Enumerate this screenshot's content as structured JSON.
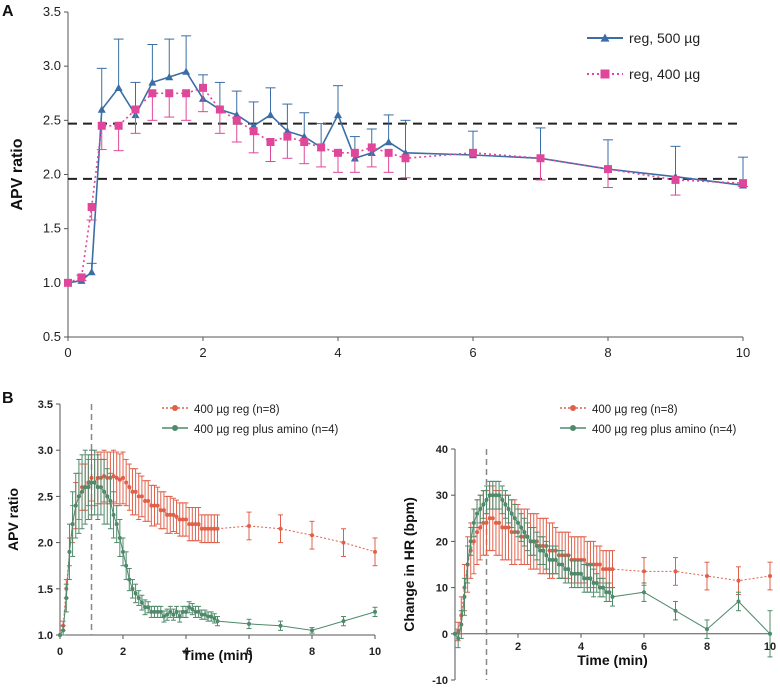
{
  "figure": {
    "panel_a_label": "A",
    "panel_b_label": "B"
  },
  "colors": {
    "blue": "#3a6ea5",
    "pink": "#e0479a",
    "red": "#e0604a",
    "green": "#4f8a6b",
    "dash_black": "#222222",
    "dash_gray": "#888888"
  },
  "chart_data": [
    {
      "id": "A",
      "type": "line",
      "xlabel": "",
      "ylabel": "APV ratio",
      "xlim": [
        0,
        10
      ],
      "ylim": [
        0.5,
        3.5
      ],
      "xticks": [
        "0",
        "2",
        "4",
        "6",
        "8",
        "10"
      ],
      "yticks": [
        "0.5",
        "1.0",
        "1.5",
        "2.0",
        "2.5",
        "3.0",
        "3.5"
      ],
      "reference_lines": [
        2.47,
        1.96
      ],
      "legend_position": "top-right",
      "series": [
        {
          "name": "reg, 500 µg",
          "x": [
            0,
            0.2,
            0.35,
            0.5,
            0.75,
            1.0,
            1.25,
            1.5,
            1.75,
            2.0,
            2.25,
            2.5,
            2.75,
            3.0,
            3.25,
            3.5,
            3.75,
            4.0,
            4.25,
            4.5,
            4.75,
            5.0,
            6.0,
            7.0,
            8.0,
            9.0,
            10.0
          ],
          "y": [
            1.0,
            1.02,
            1.1,
            2.6,
            2.8,
            2.55,
            2.85,
            2.9,
            2.95,
            2.7,
            2.6,
            2.55,
            2.45,
            2.55,
            2.4,
            2.35,
            2.25,
            2.55,
            2.15,
            2.2,
            2.3,
            2.2,
            2.18,
            2.15,
            2.05,
            1.98,
            1.9
          ],
          "err": [
            0,
            0.05,
            0.08,
            0.38,
            0.45,
            0.3,
            0.35,
            0.35,
            0.33,
            0.22,
            0.25,
            0.22,
            0.22,
            0.25,
            0.25,
            0.22,
            0.22,
            0.27,
            0.2,
            0.22,
            0.25,
            0.3,
            0.22,
            0.28,
            0.27,
            0.28,
            0.26
          ]
        },
        {
          "name": "reg, 400 µg",
          "x": [
            0,
            0.2,
            0.35,
            0.5,
            0.75,
            1.0,
            1.25,
            1.5,
            1.75,
            2.0,
            2.25,
            2.5,
            2.75,
            3.0,
            3.25,
            3.5,
            3.75,
            4.0,
            4.25,
            4.5,
            4.75,
            5.0,
            6.0,
            7.0,
            8.0,
            9.0,
            10.0
          ],
          "y": [
            1.0,
            1.05,
            1.7,
            2.45,
            2.45,
            2.6,
            2.75,
            2.75,
            2.75,
            2.8,
            2.6,
            2.5,
            2.4,
            2.3,
            2.35,
            2.3,
            2.25,
            2.2,
            2.2,
            2.25,
            2.2,
            2.15,
            2.2,
            2.15,
            2.05,
            1.95,
            1.92
          ],
          "err": [
            0,
            0.03,
            0.12,
            0.22,
            0.23,
            0.22,
            0.25,
            0.22,
            0.25,
            0.22,
            0.22,
            0.2,
            0.2,
            0.18,
            0.2,
            0.2,
            0.18,
            0.18,
            0.18,
            0.18,
            0.18,
            0.18,
            0.0,
            0.2,
            0.17,
            0.14,
            0.03
          ]
        }
      ]
    },
    {
      "id": "B-left",
      "type": "line",
      "xlabel": "Time (min)",
      "ylabel": "APV ratio",
      "xlim": [
        0,
        10
      ],
      "ylim": [
        1.0,
        3.5
      ],
      "xticks": [
        "0",
        "2",
        "4",
        "6",
        "8",
        "10"
      ],
      "yticks": [
        "1.0",
        "1.5",
        "2.0",
        "2.5",
        "3.0",
        "3.5"
      ],
      "reference_x": 1.0,
      "legend_position": "top-right",
      "series": [
        {
          "name": "400 µg reg (n=8)",
          "x": [
            0,
            0.1,
            0.2,
            0.3,
            0.4,
            0.5,
            0.6,
            0.7,
            0.8,
            0.9,
            1.0,
            1.1,
            1.2,
            1.3,
            1.4,
            1.5,
            1.6,
            1.7,
            1.8,
            1.9,
            2.0,
            2.1,
            2.2,
            2.3,
            2.4,
            2.5,
            2.6,
            2.7,
            2.8,
            2.9,
            3.0,
            3.1,
            3.2,
            3.3,
            3.4,
            3.5,
            3.6,
            3.7,
            3.8,
            3.9,
            4.0,
            4.1,
            4.2,
            4.3,
            4.4,
            4.5,
            4.6,
            4.7,
            4.8,
            4.9,
            5.0,
            6.0,
            7.0,
            8.0,
            9.0,
            10.0
          ],
          "y": [
            1.0,
            1.1,
            1.5,
            1.9,
            2.2,
            2.4,
            2.5,
            2.6,
            2.6,
            2.65,
            2.7,
            2.65,
            2.7,
            2.7,
            2.72,
            2.7,
            2.7,
            2.72,
            2.7,
            2.68,
            2.7,
            2.65,
            2.6,
            2.55,
            2.55,
            2.5,
            2.5,
            2.45,
            2.45,
            2.4,
            2.4,
            2.4,
            2.35,
            2.35,
            2.3,
            2.3,
            2.3,
            2.28,
            2.25,
            2.25,
            2.25,
            2.2,
            2.2,
            2.2,
            2.2,
            2.15,
            2.15,
            2.15,
            2.15,
            2.15,
            2.15,
            2.18,
            2.15,
            2.08,
            2.0,
            1.9
          ],
          "err": [
            0,
            0.05,
            0.1,
            0.15,
            0.2,
            0.25,
            0.25,
            0.25,
            0.25,
            0.25,
            0.25,
            0.25,
            0.28,
            0.28,
            0.28,
            0.28,
            0.28,
            0.28,
            0.28,
            0.28,
            0.28,
            0.25,
            0.25,
            0.25,
            0.25,
            0.25,
            0.22,
            0.22,
            0.22,
            0.22,
            0.22,
            0.2,
            0.2,
            0.2,
            0.2,
            0.2,
            0.18,
            0.18,
            0.18,
            0.18,
            0.18,
            0.18,
            0.18,
            0.18,
            0.18,
            0.15,
            0.15,
            0.15,
            0.15,
            0.15,
            0.15,
            0.15,
            0.15,
            0.15,
            0.15,
            0.15
          ]
        },
        {
          "name": "400 µg reg plus amino (n=4)",
          "x": [
            0,
            0.1,
            0.2,
            0.3,
            0.4,
            0.5,
            0.6,
            0.7,
            0.8,
            0.9,
            1.0,
            1.1,
            1.2,
            1.3,
            1.4,
            1.5,
            1.6,
            1.7,
            1.8,
            1.9,
            2.0,
            2.1,
            2.2,
            2.3,
            2.4,
            2.5,
            2.6,
            2.7,
            2.8,
            2.9,
            3.0,
            3.1,
            3.2,
            3.3,
            3.4,
            3.5,
            3.6,
            3.7,
            3.8,
            3.9,
            4.0,
            4.1,
            4.2,
            4.3,
            4.4,
            4.5,
            4.6,
            4.7,
            4.8,
            4.9,
            5.0,
            6.0,
            7.0,
            8.0,
            9.0,
            10.0
          ],
          "y": [
            1.0,
            1.05,
            1.4,
            1.9,
            2.2,
            2.4,
            2.5,
            2.55,
            2.6,
            2.6,
            2.65,
            2.65,
            2.6,
            2.6,
            2.55,
            2.5,
            2.45,
            2.3,
            2.2,
            2.05,
            1.9,
            1.75,
            1.6,
            1.5,
            1.45,
            1.4,
            1.35,
            1.3,
            1.3,
            1.25,
            1.25,
            1.25,
            1.25,
            1.2,
            1.22,
            1.25,
            1.22,
            1.25,
            1.2,
            1.25,
            1.25,
            1.3,
            1.28,
            1.25,
            1.25,
            1.22,
            1.22,
            1.2,
            1.2,
            1.18,
            1.15,
            1.12,
            1.1,
            1.05,
            1.15,
            1.25
          ],
          "err": [
            0,
            0.05,
            0.15,
            0.3,
            0.35,
            0.35,
            0.4,
            0.4,
            0.4,
            0.35,
            0.35,
            0.35,
            0.35,
            0.3,
            0.35,
            0.3,
            0.3,
            0.25,
            0.2,
            0.2,
            0.15,
            0.15,
            0.12,
            0.1,
            0.1,
            0.08,
            0.08,
            0.08,
            0.06,
            0.06,
            0.06,
            0.06,
            0.06,
            0.06,
            0.06,
            0.06,
            0.06,
            0.06,
            0.06,
            0.06,
            0.06,
            0.06,
            0.06,
            0.06,
            0.06,
            0.05,
            0.05,
            0.05,
            0.05,
            0.05,
            0.05,
            0.05,
            0.05,
            0.03,
            0.05,
            0.05
          ]
        }
      ]
    },
    {
      "id": "B-right",
      "type": "line",
      "xlabel": "Time (min)",
      "ylabel": "Change in HR (bpm)",
      "xlim": [
        0,
        10
      ],
      "ylim": [
        -10,
        40
      ],
      "xticks": [
        "2",
        "4",
        "6",
        "8",
        "10"
      ],
      "yticks": [
        "-10",
        "0",
        "10",
        "20",
        "30",
        "40"
      ],
      "reference_x": 1.0,
      "legend_position": "top-right",
      "series": [
        {
          "name": "400 µg reg (n=8)",
          "x": [
            0,
            0.1,
            0.2,
            0.3,
            0.4,
            0.5,
            0.6,
            0.7,
            0.8,
            0.9,
            1.0,
            1.1,
            1.2,
            1.3,
            1.4,
            1.5,
            1.6,
            1.7,
            1.8,
            1.9,
            2.0,
            2.1,
            2.2,
            2.3,
            2.4,
            2.5,
            2.6,
            2.7,
            2.8,
            2.9,
            3.0,
            3.1,
            3.2,
            3.3,
            3.4,
            3.5,
            3.6,
            3.7,
            3.8,
            3.9,
            4.0,
            4.1,
            4.2,
            4.3,
            4.4,
            4.5,
            4.6,
            4.7,
            4.8,
            4.9,
            5.0,
            6.0,
            7.0,
            8.0,
            9.0,
            10.0
          ],
          "y": [
            0,
            0.5,
            4,
            10,
            15,
            18,
            20,
            22,
            23,
            24,
            24,
            25,
            25,
            24,
            24,
            23,
            23,
            23,
            22,
            22,
            22,
            21,
            21,
            21,
            20,
            20,
            20,
            19,
            19,
            19,
            18,
            18,
            18,
            17,
            17,
            17,
            17,
            16,
            16,
            16,
            16,
            16,
            15,
            15,
            15,
            15,
            15,
            14,
            14,
            14,
            14,
            13.5,
            13.5,
            12.5,
            11.5,
            12.5
          ],
          "err": [
            0,
            2,
            4,
            5,
            6,
            6,
            7,
            7,
            7,
            7,
            7,
            7,
            7,
            7,
            7,
            7,
            7,
            7,
            7,
            7,
            6,
            6,
            6,
            6,
            6,
            6,
            6,
            6,
            6,
            6,
            6,
            6,
            5,
            5,
            5,
            5,
            5,
            5,
            5,
            5,
            5,
            5,
            5,
            5,
            5,
            4,
            4,
            4,
            4,
            4,
            4,
            3,
            3,
            3,
            3,
            3
          ]
        },
        {
          "name": "400 µg reg plus amino (n=4)",
          "x": [
            0,
            0.1,
            0.2,
            0.3,
            0.4,
            0.5,
            0.6,
            0.7,
            0.8,
            0.9,
            1.0,
            1.1,
            1.2,
            1.3,
            1.4,
            1.5,
            1.6,
            1.7,
            1.8,
            1.9,
            2.0,
            2.1,
            2.2,
            2.3,
            2.4,
            2.5,
            2.6,
            2.7,
            2.8,
            2.9,
            3.0,
            3.1,
            3.2,
            3.3,
            3.4,
            3.5,
            3.6,
            3.7,
            3.8,
            3.9,
            4.0,
            4.1,
            4.2,
            4.3,
            4.4,
            4.5,
            4.6,
            4.7,
            4.8,
            4.9,
            5.0,
            6.0,
            7.0,
            8.0,
            9.0,
            10.0
          ],
          "y": [
            0,
            -1,
            2,
            8,
            15,
            20,
            24,
            26,
            27,
            28,
            29,
            30,
            30,
            30,
            30,
            29,
            28,
            27,
            26,
            25,
            24,
            23,
            22,
            21,
            20,
            20,
            19,
            18,
            18,
            17,
            16,
            16,
            16,
            15,
            15,
            14,
            14,
            13,
            13,
            13,
            13,
            12,
            12,
            12,
            11,
            11,
            10,
            10,
            9,
            9,
            8,
            9,
            5,
            1,
            7,
            0
          ],
          "err": [
            0,
            2,
            3,
            4,
            4,
            3,
            3,
            3,
            3,
            3,
            3,
            3,
            3,
            3,
            3,
            3,
            3,
            3,
            3,
            3,
            3,
            3,
            3,
            3,
            3,
            3,
            3,
            3,
            3,
            3,
            3,
            3,
            3,
            3,
            3,
            3,
            3,
            3,
            3,
            3,
            3,
            3,
            3,
            3,
            3,
            2,
            2,
            2,
            2,
            2,
            2,
            2,
            2,
            2,
            2,
            5
          ]
        }
      ]
    }
  ]
}
